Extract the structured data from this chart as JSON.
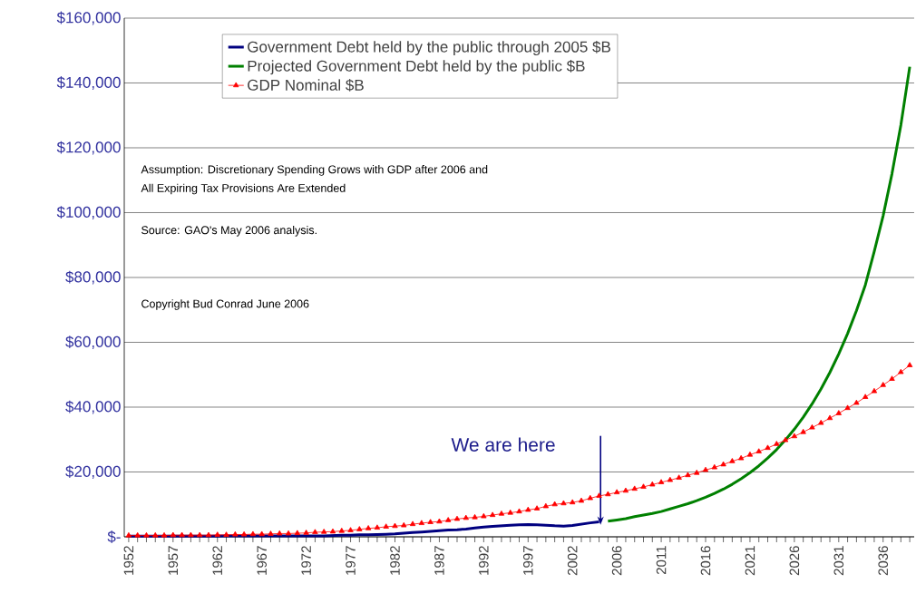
{
  "chart_data": {
    "type": "line",
    "categories": [
      "1952",
      null,
      null,
      null,
      null,
      "1957",
      null,
      null,
      null,
      null,
      "1962",
      null,
      null,
      null,
      null,
      "1967",
      null,
      null,
      null,
      null,
      "1972",
      null,
      null,
      null,
      null,
      "1977",
      null,
      null,
      null,
      null,
      "1982",
      null,
      null,
      null,
      null,
      "1987",
      null,
      null,
      null,
      null,
      "1992",
      null,
      null,
      null,
      null,
      "1997",
      null,
      null,
      null,
      null,
      "2002",
      null,
      null,
      null,
      null,
      "2006",
      null,
      null,
      null,
      null,
      "2011",
      null,
      null,
      null,
      null,
      "2016",
      null,
      null,
      null,
      null,
      "2021",
      null,
      null,
      null,
      null,
      "2026",
      null,
      null,
      null,
      null,
      "2031",
      null,
      null,
      null,
      null,
      "2036",
      null,
      null,
      null
    ],
    "series": [
      {
        "name": "Government Debt held by the public through 2005 $B",
        "color": "#000080",
        "marker": "none",
        "values": [
          200,
          200,
          200,
          200,
          200,
          200,
          200,
          200,
          200,
          200,
          200,
          300,
          300,
          300,
          300,
          300,
          300,
          300,
          300,
          300,
          300,
          300,
          300,
          400,
          500,
          500,
          600,
          600,
          700,
          800,
          900,
          1100,
          1300,
          1500,
          1700,
          1900,
          2100,
          2200,
          2400,
          2700,
          3000,
          3200,
          3400,
          3600,
          3700,
          3800,
          3700,
          3600,
          3400,
          3300,
          3500,
          3900,
          4300,
          4600,
          null,
          null,
          null,
          null,
          null,
          null,
          null,
          null,
          null,
          null,
          null,
          null,
          null,
          null,
          null,
          null,
          null,
          null,
          null,
          null,
          null,
          null,
          null,
          null,
          null,
          null,
          null,
          null,
          null,
          null,
          null,
          null,
          null,
          null,
          null
        ]
      },
      {
        "name": "Projected Government Debt held by the public $B",
        "color": "#008000",
        "marker": "none",
        "values": [
          null,
          null,
          null,
          null,
          null,
          null,
          null,
          null,
          null,
          null,
          null,
          null,
          null,
          null,
          null,
          null,
          null,
          null,
          null,
          null,
          null,
          null,
          null,
          null,
          null,
          null,
          null,
          null,
          null,
          null,
          null,
          null,
          null,
          null,
          null,
          null,
          null,
          null,
          null,
          null,
          null,
          null,
          null,
          null,
          null,
          null,
          null,
          null,
          null,
          null,
          null,
          null,
          null,
          null,
          4800,
          5200,
          5600,
          6200,
          6700,
          7200,
          7800,
          8600,
          9400,
          10200,
          11150,
          12200,
          13400,
          14700,
          16200,
          17900,
          19800,
          21900,
          24300,
          26900,
          29900,
          33200,
          36900,
          41000,
          45600,
          50700,
          56400,
          62700,
          69800,
          77700,
          88000,
          99000,
          112000,
          127000,
          145000
        ]
      },
      {
        "name": "GDP Nominal $B",
        "color": "#ff0000",
        "marker": "triangle",
        "values": [
          400,
          400,
          400,
          400,
          400,
          500,
          500,
          500,
          500,
          500,
          600,
          600,
          700,
          700,
          800,
          800,
          900,
          1000,
          1000,
          1100,
          1200,
          1400,
          1500,
          1600,
          1800,
          2000,
          2300,
          2600,
          2800,
          3100,
          3300,
          3500,
          3900,
          4200,
          4500,
          4700,
          5100,
          5500,
          5800,
          6000,
          6300,
          6700,
          7100,
          7400,
          7800,
          8300,
          8700,
          9400,
          10000,
          10300,
          10600,
          11100,
          11900,
          12600,
          13100,
          13700,
          14200,
          14800,
          15400,
          16100,
          16800,
          17500,
          18200,
          19000,
          19700,
          20600,
          21400,
          22300,
          23300,
          24200,
          25300,
          26300,
          27400,
          28600,
          29800,
          31000,
          32300,
          33700,
          35100,
          36600,
          38100,
          39700,
          41300,
          43100,
          44900,
          46800,
          48700,
          50800,
          52900
        ]
      }
    ],
    "ylim": [
      0,
      160000
    ],
    "yticks": [
      {
        "value": 0,
        "label": "$-"
      },
      {
        "value": 20000,
        "label": "$20,000"
      },
      {
        "value": 40000,
        "label": "$40,000"
      },
      {
        "value": 60000,
        "label": "$60,000"
      },
      {
        "value": 80000,
        "label": "$80,000"
      },
      {
        "value": 100000,
        "label": "$100,000"
      },
      {
        "value": 120000,
        "label": "$120,000"
      },
      {
        "value": 140000,
        "label": "$140,000"
      },
      {
        "value": 160000,
        "label": "$160,000"
      }
    ],
    "grid": "y",
    "legend": "top",
    "annotations": [
      "Assumption: Discretionary Spending Grows with GDP after 2006 and",
      "All Expiring Tax Provisions Are Extended",
      "Source:  GAO's May 2006 analysis.",
      "Copyright Bud Conrad June 2006",
      "We are here"
    ]
  }
}
